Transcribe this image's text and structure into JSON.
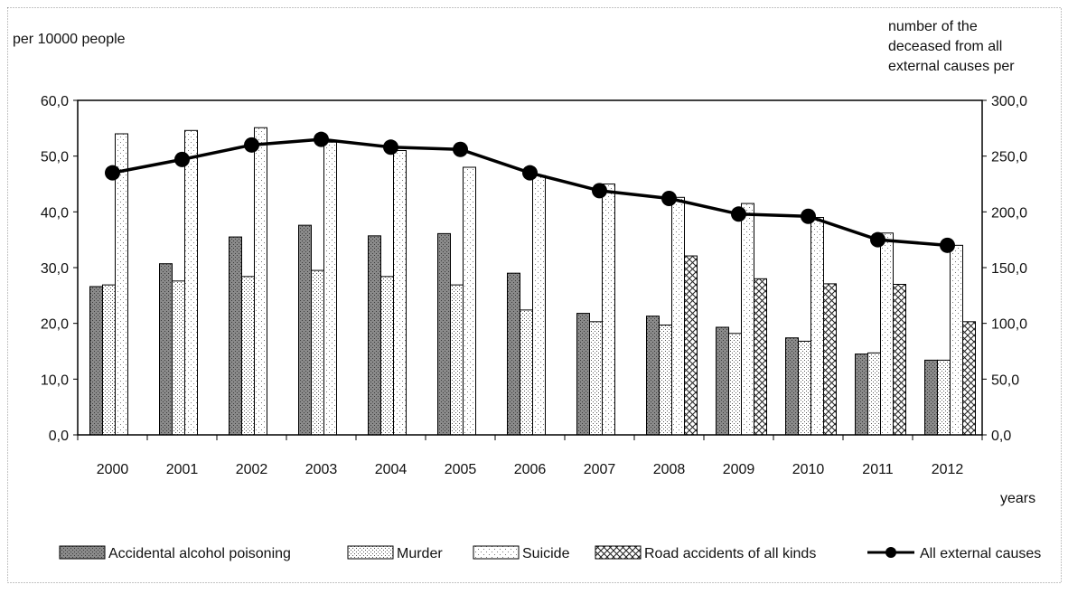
{
  "chart_data": {
    "type": "bar",
    "y_left_label": "per  10000 people",
    "y_right_label": [
      "number of the",
      "deceased from all",
      "external causes per"
    ],
    "x_label": "years",
    "categories": [
      "2000",
      "2001",
      "2002",
      "2003",
      "2004",
      "2005",
      "2006",
      "2007",
      "2008",
      "2009",
      "2010",
      "2011",
      "2012"
    ],
    "ylim_left": [
      0,
      60
    ],
    "ylim_right": [
      0,
      300
    ],
    "yticks_left": [
      "0,0",
      "10,0",
      "20,0",
      "30,0",
      "40,0",
      "50,0",
      "60,0"
    ],
    "yticks_right": [
      "0,0",
      "50,0",
      "100,0",
      "150,0",
      "200,0",
      "250,0",
      "300,0"
    ],
    "bar_series": [
      {
        "name": "Accidental alcohol poisoning",
        "pattern": "dark-dots",
        "values": [
          26.6,
          30.7,
          35.5,
          37.6,
          35.7,
          36.1,
          29.0,
          21.8,
          21.3,
          19.3,
          17.4,
          14.5,
          13.4
        ]
      },
      {
        "name": "Murder",
        "pattern": "light-dots",
        "values": [
          26.9,
          27.6,
          28.4,
          29.5,
          28.4,
          26.9,
          22.4,
          20.3,
          19.7,
          18.2,
          16.8,
          14.7,
          13.4
        ]
      },
      {
        "name": "Suicide",
        "pattern": "sparse-dots",
        "values": [
          54.0,
          54.6,
          55.1,
          52.5,
          51.0,
          48.0,
          46.5,
          45.0,
          42.6,
          41.5,
          39.0,
          36.2,
          34.0
        ]
      },
      {
        "name": "Road accidents of all kinds",
        "pattern": "crosshatch",
        "values": [
          null,
          null,
          null,
          null,
          null,
          null,
          null,
          null,
          32.1,
          28.0,
          27.1,
          27.0,
          20.3
        ]
      }
    ],
    "line_series": {
      "name": "All external causes",
      "axis": "right",
      "values": [
        235.0,
        247.0,
        260.0,
        265.0,
        258.0,
        256.0,
        235.0,
        219.0,
        212.0,
        198.0,
        196.0,
        175.0,
        170.0
      ]
    },
    "grid": false,
    "legend_position": "bottom"
  }
}
